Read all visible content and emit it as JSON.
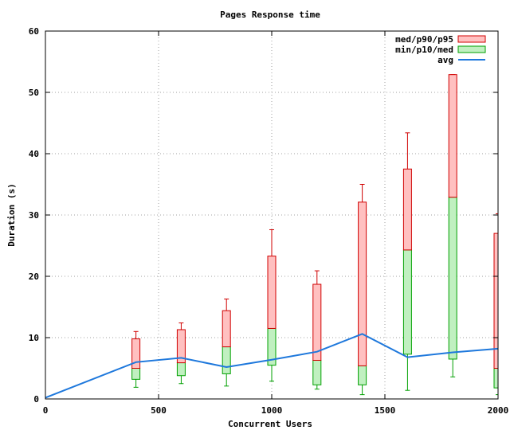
{
  "chart_data": {
    "type": "box",
    "title": "Pages Response time",
    "xlabel": "Concurrent Users",
    "ylabel": "Duration (s)",
    "xlim": [
      0,
      2000
    ],
    "ylim": [
      0,
      60
    ],
    "xticks": [
      0,
      500,
      1000,
      1500,
      2000
    ],
    "yticks": [
      0,
      10,
      20,
      30,
      40,
      50,
      60
    ],
    "grid": true,
    "legend_position": "top-right",
    "legend": [
      {
        "label": "med/p90/p95",
        "color_fill": "#ffc0c0",
        "color_stroke": "#d00000"
      },
      {
        "label": "min/p10/med",
        "color_fill": "#c0f0c0",
        "color_stroke": "#00a000"
      },
      {
        "label": "avg",
        "color_stroke": "#1e78dc"
      }
    ],
    "x": [
      400,
      600,
      800,
      1000,
      1200,
      1400,
      1600,
      1800,
      2000
    ],
    "boxes": [
      {
        "x": 400,
        "min": 1.9,
        "p10": 3.2,
        "med": 5.0,
        "p90": 9.8,
        "p95": 11.0
      },
      {
        "x": 600,
        "min": 2.5,
        "p10": 3.8,
        "med": 5.9,
        "p90": 11.3,
        "p95": 12.4
      },
      {
        "x": 800,
        "min": 2.1,
        "p10": 4.1,
        "med": 8.5,
        "p90": 14.4,
        "p95": 16.3
      },
      {
        "x": 1000,
        "min": 2.9,
        "p10": 5.5,
        "med": 11.5,
        "p90": 23.3,
        "p95": 27.6
      },
      {
        "x": 1200,
        "min": 1.6,
        "p10": 2.3,
        "med": 6.3,
        "p90": 18.7,
        "p95": 20.9
      },
      {
        "x": 1400,
        "min": 0.7,
        "p10": 2.3,
        "med": 5.4,
        "p90": 32.1,
        "p95": 35.0
      },
      {
        "x": 1600,
        "min": 1.4,
        "p10": 7.3,
        "med": 24.3,
        "p90": 37.5,
        "p95": 43.4
      },
      {
        "x": 1800,
        "min": 3.6,
        "p10": 6.5,
        "med": 32.9,
        "p90": 52.9,
        "p95": 52.9
      },
      {
        "x": 2000,
        "min": 0.7,
        "p10": 1.8,
        "med": 5.0,
        "p90": 27.0,
        "p95": 30.2
      }
    ],
    "avg": {
      "x": [
        0,
        400,
        600,
        800,
        1000,
        1200,
        1400,
        1600,
        1800,
        2000
      ],
      "values": [
        0.2,
        6.0,
        6.7,
        5.2,
        6.4,
        7.7,
        10.6,
        6.8,
        7.6,
        8.2
      ]
    }
  }
}
